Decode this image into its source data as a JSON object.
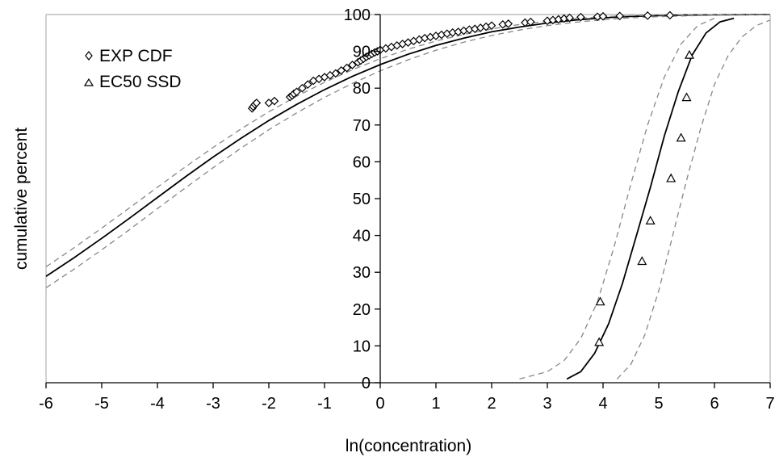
{
  "chart_data": {
    "type": "scatter",
    "xlabel": "ln(concentration)",
    "ylabel": "cumulative percent",
    "xlim": [
      -6,
      7
    ],
    "ylim": [
      0,
      100
    ],
    "x_ticks": [
      -6,
      -5,
      -4,
      -3,
      -2,
      -1,
      0,
      1,
      2,
      3,
      4,
      5,
      6,
      7
    ],
    "y_ticks": [
      0,
      10,
      20,
      30,
      40,
      50,
      60,
      70,
      80,
      90,
      100
    ],
    "x_tick_labels": [
      "-6",
      "-5",
      "-4",
      "-3",
      "-2",
      "-1",
      "0",
      "1",
      "2",
      "3",
      "4",
      "5",
      "6",
      "7"
    ],
    "y_tick_labels": [
      "0",
      "10",
      "20",
      "30",
      "40",
      "50",
      "60",
      "70",
      "80",
      "90",
      "100"
    ],
    "legend": {
      "position": "top-left",
      "entries": [
        {
          "label": "EXP CDF",
          "marker": "diamond"
        },
        {
          "label": "EC50 SSD",
          "marker": "triangle"
        }
      ]
    },
    "grid": false,
    "series": [
      {
        "name": "EXP CDF",
        "kind": "points",
        "marker": "diamond",
        "color": "#000000",
        "x": [
          -2.3,
          -2.28,
          -2.25,
          -2.22,
          -2.0,
          -1.9,
          -1.62,
          -1.58,
          -1.55,
          -1.5,
          -1.4,
          -1.3,
          -1.2,
          -1.1,
          -1.0,
          -0.9,
          -0.8,
          -0.7,
          -0.6,
          -0.5,
          -0.4,
          -0.35,
          -0.3,
          -0.25,
          -0.2,
          -0.15,
          -0.1,
          -0.05,
          0.0,
          0.1,
          0.2,
          0.3,
          0.4,
          0.5,
          0.6,
          0.7,
          0.8,
          0.9,
          1.0,
          1.1,
          1.2,
          1.3,
          1.4,
          1.5,
          1.6,
          1.7,
          1.8,
          1.9,
          2.0,
          2.2,
          2.3,
          2.6,
          2.7,
          3.0,
          3.1,
          3.2,
          3.3,
          3.4,
          3.6,
          3.9,
          4.0,
          4.3,
          4.8,
          5.2
        ],
        "y": [
          74.5,
          75,
          75.6,
          76,
          76,
          76.5,
          77.6,
          78,
          78.5,
          79,
          80,
          81,
          82,
          82.5,
          83,
          83.5,
          84,
          84.8,
          85.5,
          86.3,
          87,
          87.5,
          88,
          88.5,
          88.9,
          89.3,
          89.7,
          90,
          90.4,
          90.8,
          91.2,
          91.6,
          92,
          92.4,
          92.8,
          93.2,
          93.6,
          93.9,
          94.2,
          94.5,
          94.8,
          95.1,
          95.3,
          95.6,
          95.9,
          96.1,
          96.4,
          96.7,
          97,
          97.3,
          97.5,
          97.8,
          98,
          98.3,
          98.5,
          98.7,
          98.9,
          99.1,
          99.3,
          99.4,
          99.5,
          99.6,
          99.7,
          99.8
        ]
      },
      {
        "name": "EC50 SSD",
        "kind": "points",
        "marker": "triangle",
        "color": "#000000",
        "x": [
          3.93,
          3.95,
          4.7,
          4.85,
          5.22,
          5.4,
          5.5,
          5.55
        ],
        "y": [
          11,
          22,
          33,
          44,
          55.5,
          66.5,
          77.5,
          89
        ]
      },
      {
        "name": "",
        "kind": "line",
        "style": "solid",
        "color": "#000000",
        "x": [
          -6,
          -5.5,
          -5,
          -4.5,
          -4,
          -3.5,
          -3,
          -2.5,
          -2,
          -1.5,
          -1,
          -0.5,
          0,
          0.5,
          1,
          1.5,
          2,
          2.5,
          3,
          3.5,
          4,
          4.5,
          5,
          5.5,
          6,
          6.5,
          7
        ],
        "y": [
          28.9,
          33.9,
          39.2,
          44.7,
          50.3,
          55.9,
          61.3,
          66.4,
          71.2,
          75.6,
          79.6,
          83.2,
          86.4,
          89.2,
          91.6,
          93.6,
          95.3,
          96.6,
          97.7,
          98.5,
          99.1,
          99.5,
          99.7,
          99.85,
          99.92,
          99.96,
          100
        ]
      },
      {
        "name": "",
        "kind": "line",
        "style": "dashed",
        "color": "#888888",
        "x": [
          -6,
          -5.5,
          -5,
          -4.5,
          -4,
          -3.5,
          -3,
          -2.5,
          -2,
          -1.5,
          -1,
          -0.5,
          0,
          0.5,
          1,
          1.5,
          2,
          2.5,
          3,
          3.5,
          4,
          4.5,
          5,
          5.5,
          6,
          6.5,
          7
        ],
        "y": [
          31.5,
          36.6,
          42.0,
          47.5,
          53.1,
          58.6,
          63.9,
          68.9,
          73.6,
          77.8,
          81.6,
          85.0,
          88.0,
          90.6,
          92.8,
          94.6,
          96.1,
          97.3,
          98.2,
          98.9,
          99.4,
          99.7,
          99.85,
          99.93,
          99.97,
          99.99,
          100
        ]
      },
      {
        "name": "",
        "kind": "line",
        "style": "dashed",
        "color": "#888888",
        "x": [
          -6,
          -5.5,
          -5,
          -4.5,
          -4,
          -3.5,
          -3,
          -2.5,
          -2,
          -1.5,
          -1,
          -0.5,
          0,
          0.5,
          1,
          1.5,
          2,
          2.5,
          3,
          3.5,
          4,
          4.5,
          5,
          5.5,
          6,
          6.5,
          7
        ],
        "y": [
          25.8,
          30.8,
          36.1,
          41.6,
          47.3,
          52.9,
          58.4,
          63.7,
          68.7,
          73.3,
          77.5,
          81.3,
          84.7,
          87.7,
          90.3,
          92.5,
          94.3,
          95.8,
          97.0,
          97.9,
          98.6,
          99.1,
          99.4,
          99.65,
          99.8,
          99.9,
          100
        ]
      },
      {
        "name": "",
        "kind": "line",
        "style": "solid",
        "color": "#000000",
        "x": [
          3.35,
          3.6,
          3.85,
          4.1,
          4.35,
          4.6,
          4.85,
          5.1,
          5.35,
          5.6,
          5.85,
          6.1,
          6.35
        ],
        "y": [
          1,
          3,
          8,
          16,
          27,
          40,
          53,
          67,
          79,
          89,
          95,
          98,
          99
        ]
      },
      {
        "name": "",
        "kind": "line",
        "style": "dashed",
        "color": "#888888",
        "x": [
          2.5,
          3.0,
          3.3,
          3.6,
          3.9,
          4.2,
          4.5,
          4.8,
          5.1,
          5.4,
          5.7,
          6.0
        ],
        "y": [
          1,
          3,
          6,
          12,
          22,
          37,
          54,
          70,
          83,
          92,
          97,
          99
        ]
      },
      {
        "name": "",
        "kind": "line",
        "style": "dashed",
        "color": "#888888",
        "x": [
          4.25,
          4.5,
          4.75,
          5.0,
          5.25,
          5.5,
          5.75,
          6.0,
          6.25,
          6.5,
          6.75,
          7.0
        ],
        "y": [
          1,
          5,
          13,
          25,
          40,
          55,
          69,
          81,
          89,
          94,
          97,
          98.5
        ]
      }
    ]
  }
}
